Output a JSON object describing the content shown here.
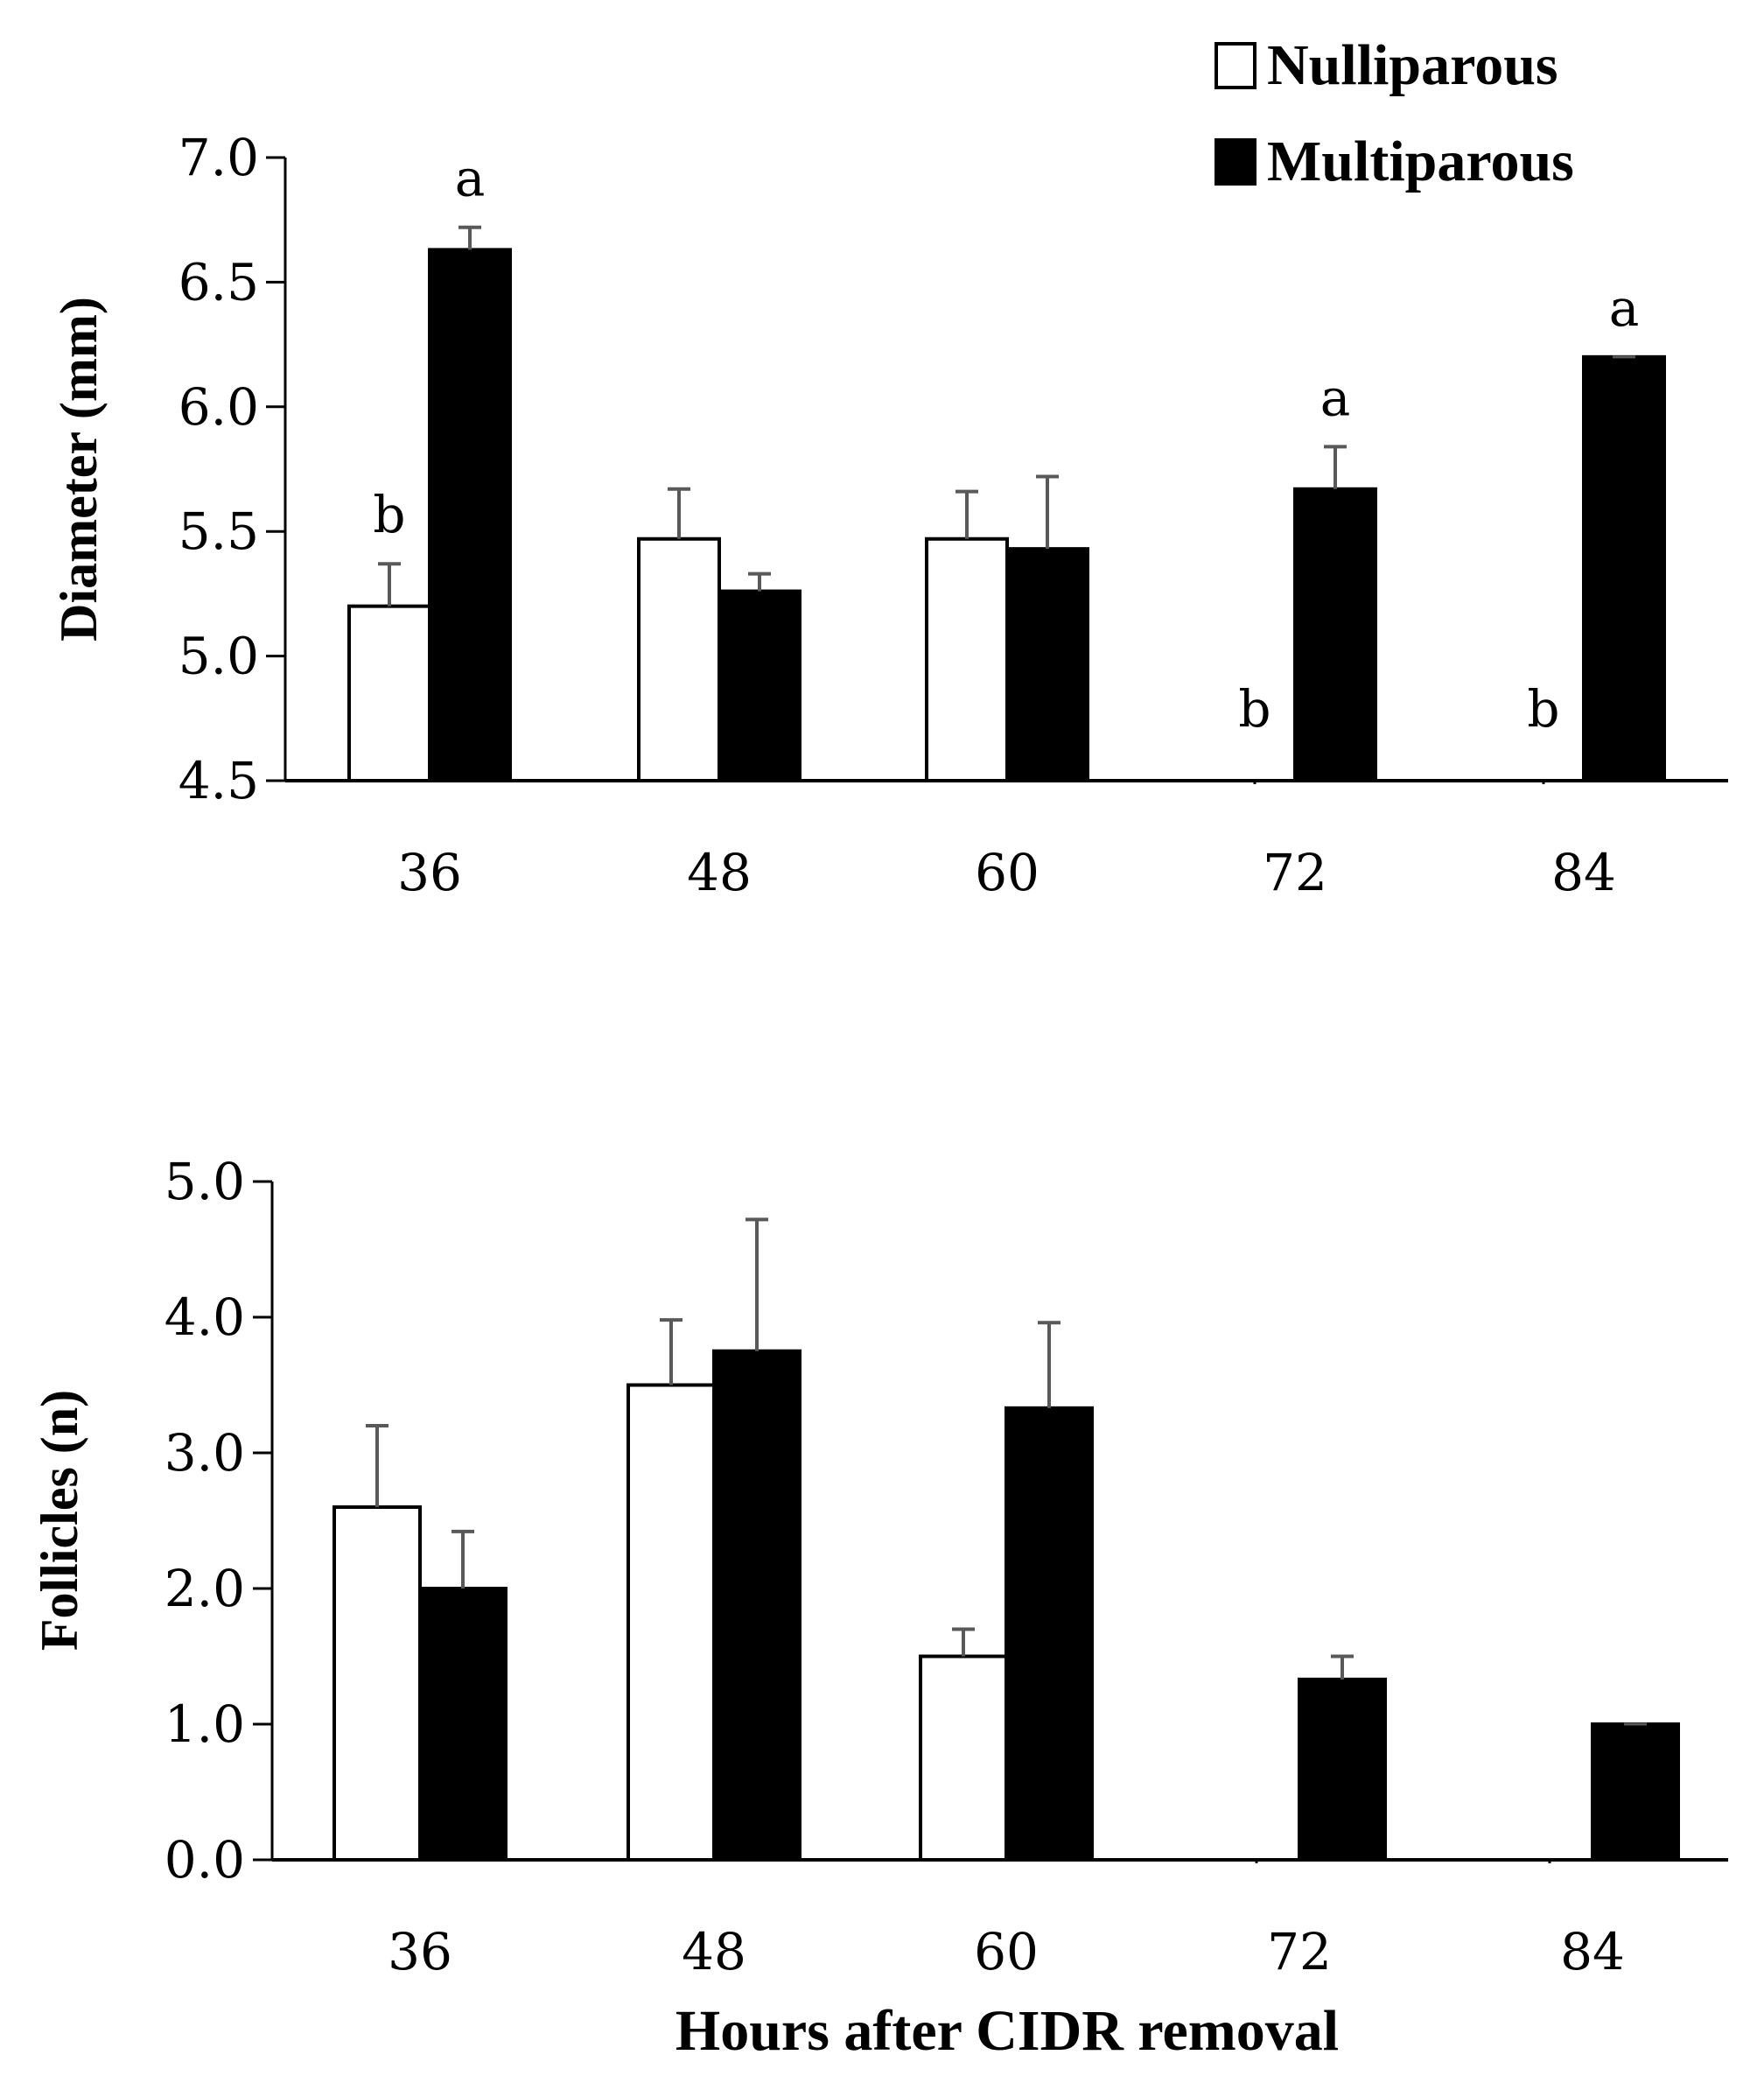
{
  "legend": [
    {
      "label": "Nulliparous",
      "fill": "#ffffff"
    },
    {
      "label": "Multiparous",
      "fill": "#000000"
    }
  ],
  "colors": {
    "nulliparous": "#ffffff",
    "multiparous": "#000000",
    "axis": "#000000",
    "error_bar": "#595959"
  },
  "xlabel": "Hours after CIDR removal",
  "chart_data": [
    {
      "type": "bar",
      "title": "",
      "ylabel": "Diameter (mm)",
      "xlabel": "",
      "categories": [
        "36",
        "48",
        "60",
        "72",
        "84"
      ],
      "ylim": [
        4.5,
        7.0
      ],
      "yticks": [
        "4.5",
        "5.0",
        "5.5",
        "6.0",
        "6.5",
        "7.0"
      ],
      "series": [
        {
          "name": "Nulliparous",
          "values": [
            5.2,
            5.47,
            5.47,
            4.5,
            4.5
          ],
          "errors": [
            0.17,
            0.2,
            0.19,
            0,
            0
          ],
          "labels": [
            "b",
            "",
            "",
            "b",
            "b"
          ]
        },
        {
          "name": "Multiparous",
          "values": [
            6.63,
            5.26,
            5.43,
            5.67,
            6.2
          ],
          "errors": [
            0.09,
            0.07,
            0.29,
            0.17,
            0
          ],
          "labels": [
            "a",
            "",
            "",
            "a",
            "a"
          ]
        }
      ]
    },
    {
      "type": "bar",
      "title": "",
      "ylabel": "Follicles (n)",
      "xlabel": "Hours after CIDR removal",
      "categories": [
        "36",
        "48",
        "60",
        "72",
        "84"
      ],
      "ylim": [
        0.0,
        5.0
      ],
      "yticks": [
        "0.0",
        "1.0",
        "2.0",
        "3.0",
        "4.0",
        "5.0"
      ],
      "series": [
        {
          "name": "Nulliparous",
          "values": [
            2.6,
            3.5,
            1.5,
            0,
            0
          ],
          "errors": [
            0.6,
            0.48,
            0.2,
            0,
            0
          ],
          "labels": [
            "",
            "",
            "",
            "",
            ""
          ]
        },
        {
          "name": "Multiparous",
          "values": [
            2.0,
            3.75,
            3.33,
            1.33,
            1.0
          ],
          "errors": [
            0.42,
            0.97,
            0.63,
            0.17,
            0
          ],
          "labels": [
            "",
            "",
            "",
            "",
            ""
          ]
        }
      ]
    }
  ]
}
